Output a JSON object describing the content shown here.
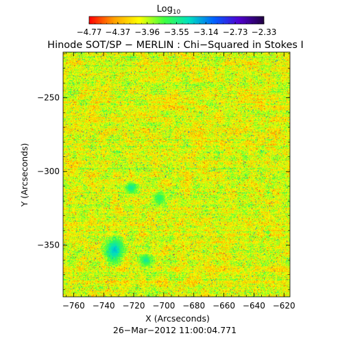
{
  "chart_data": {
    "type": "heatmap",
    "title": "Hinode SOT/SP − MERLIN : Chi−Squared in Stokes I",
    "xlabel": "X (Arcseconds)",
    "ylabel": "Y (Arcseconds)",
    "timestamp": "26−Mar−2012 11:00:04.771",
    "xlim": [
      -767,
      -616
    ],
    "ylim": [
      -385,
      -219
    ],
    "x_ticks": [
      -760,
      -740,
      -720,
      -700,
      -680,
      -660,
      -640,
      -620
    ],
    "x_tick_labels": [
      "−760",
      "−740",
      "−720",
      "−700",
      "−680",
      "−660",
      "−640",
      "−620"
    ],
    "y_ticks": [
      -250,
      -300,
      -350
    ],
    "y_tick_labels": [
      "−250",
      "−300",
      "−350"
    ],
    "colorbar": {
      "title": "Log",
      "title_subscript": "10",
      "min": -4.77,
      "max": -2.33,
      "tick_values": [
        -4.77,
        -4.37,
        -3.96,
        -3.55,
        -3.14,
        -2.73,
        -2.33
      ],
      "tick_labels": [
        "−4.77",
        "−4.37",
        "−3.96",
        "−3.55",
        "−3.14",
        "−2.73",
        "−2.33"
      ],
      "colormap": [
        "#ff0000",
        "#ffa000",
        "#ffff00",
        "#40ff40",
        "#00e0c0",
        "#0060ff",
        "#5000d0",
        "#200040"
      ]
    },
    "features": [
      {
        "label": "blue oval region",
        "x": -733,
        "y": -353,
        "log_value": -3.3
      },
      {
        "label": "cyan patch",
        "x": -722,
        "y": -311,
        "log_value": -3.5
      },
      {
        "label": "cyan patch",
        "x": -712,
        "y": -360,
        "log_value": -3.5
      },
      {
        "label": "cyan patch",
        "x": -703,
        "y": -318,
        "log_value": -3.6
      }
    ]
  }
}
